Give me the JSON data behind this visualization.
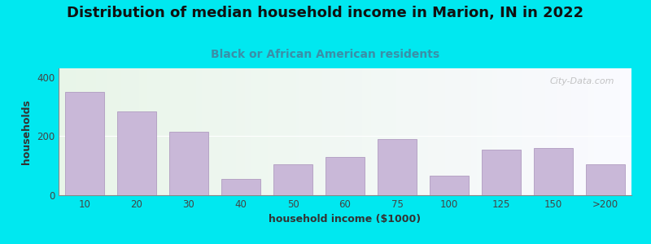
{
  "title": "Distribution of median household income in Marion, IN in 2022",
  "subtitle": "Black or African American residents",
  "xlabel": "household income ($1000)",
  "ylabel": "households",
  "categories": [
    "10",
    "20",
    "30",
    "40",
    "50",
    "60",
    "75",
    "100",
    "125",
    "150",
    ">200"
  ],
  "values": [
    350,
    285,
    215,
    55,
    105,
    130,
    190,
    65,
    155,
    160,
    105
  ],
  "ylim": [
    0,
    430
  ],
  "yticks": [
    0,
    200,
    400
  ],
  "bar_color": "#c9b8d8",
  "bar_edge_color": "#b09cc0",
  "background_outer": "#00e8f0",
  "title_fontsize": 13,
  "subtitle_fontsize": 10,
  "label_fontsize": 9,
  "tick_fontsize": 8.5,
  "watermark_text": "City-Data.com"
}
